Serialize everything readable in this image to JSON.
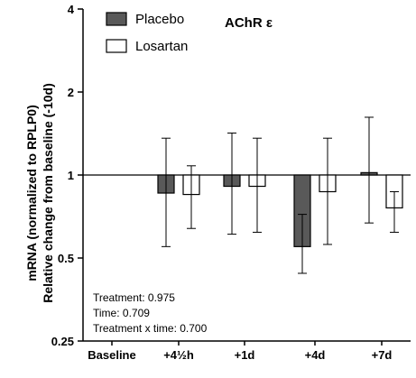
{
  "chart_data": {
    "type": "bar",
    "title": "AChR ε",
    "ylabel_line1": "mRNA (normalized to RPLP0)",
    "ylabel_line2": "Relative change from baseline  (-10d)",
    "y_scale": "log2",
    "ylim": [
      0.25,
      4
    ],
    "yticks": [
      0.25,
      0.5,
      1,
      2,
      4
    ],
    "ytick_labels": [
      "0.25",
      "0.5",
      "1",
      "2",
      "4"
    ],
    "baseline_reference": 1,
    "categories": [
      "Baseline",
      "+4½h",
      "+1d",
      "+4d",
      "+7d"
    ],
    "legend_position": "top-left",
    "series": [
      {
        "name": "Placebo",
        "color": "#595959",
        "values": [
          null,
          0.86,
          0.91,
          0.55,
          1.02
        ],
        "err_low": [
          null,
          0.55,
          0.61,
          0.44,
          0.67
        ],
        "err_high": [
          null,
          1.36,
          1.42,
          0.72,
          1.62
        ]
      },
      {
        "name": "Losartan",
        "color": "#ffffff",
        "values": [
          null,
          0.85,
          0.91,
          0.87,
          0.76
        ],
        "err_low": [
          null,
          0.64,
          0.62,
          0.56,
          0.62
        ],
        "err_high": [
          null,
          1.08,
          1.36,
          1.36,
          0.87
        ]
      }
    ],
    "annotations": [
      "Treatment: 0.975",
      "Time: 0.709",
      "Treatment x time: 0.700"
    ]
  }
}
